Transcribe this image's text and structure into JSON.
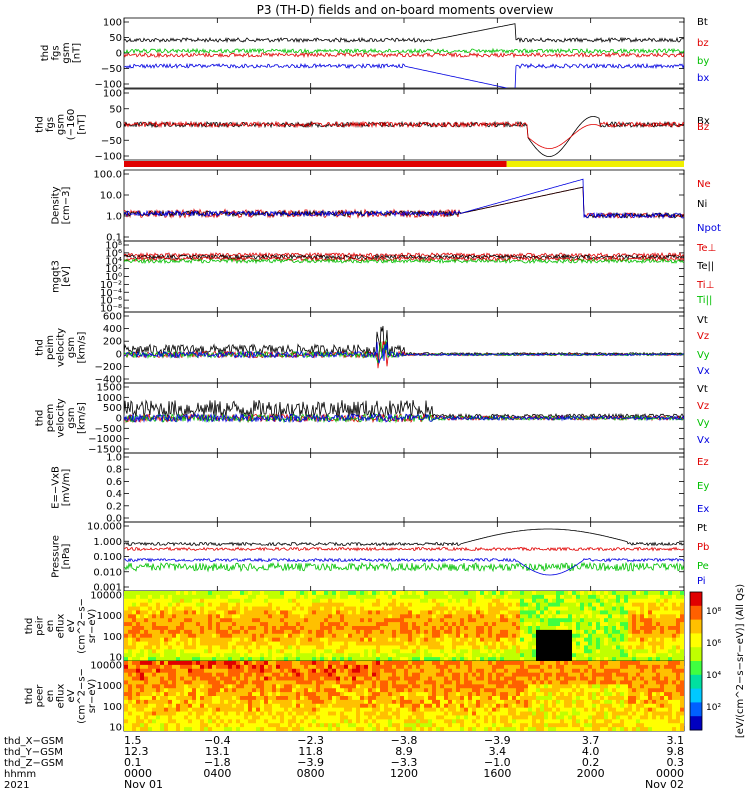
{
  "title": "P3 (TH-D) fields and on-board moments overview",
  "colors": {
    "black": "#000000",
    "red": "#e00000",
    "green": "#00c000",
    "blue": "#0000e0",
    "yellow": "#f0f000"
  },
  "chart_data": [
    {
      "id": "fgs",
      "type": "line",
      "ylabel": [
        "thd",
        "fgs",
        "gsm",
        "[nT]"
      ],
      "ylim": [
        -100,
        100
      ],
      "yticks": [
        "100",
        "50",
        "0",
        "−50",
        "−100"
      ],
      "series": [
        {
          "name": "Bt",
          "color": "black"
        },
        {
          "name": "bz",
          "color": "red"
        },
        {
          "name": "by",
          "color": "green"
        },
        {
          "name": "bx",
          "color": "blue"
        }
      ]
    },
    {
      "id": "fgs2",
      "type": "line",
      "ylabel": [
        "thd",
        "fgs",
        "gsm",
        "(−160",
        "[nT]"
      ],
      "ylim": [
        -125,
        100
      ],
      "yticks": [
        "100",
        "50",
        "0",
        "−50",
        "−100"
      ],
      "series": [
        {
          "name": "Bx",
          "color": "black"
        },
        {
          "name": "Bz",
          "color": "red"
        }
      ]
    },
    {
      "id": "mode",
      "type": "bar",
      "segments": [
        {
          "from": 0.0,
          "to": 16.4,
          "color": "red"
        },
        {
          "from": 16.4,
          "to": 24.0,
          "color": "yellow"
        }
      ]
    },
    {
      "id": "dens",
      "type": "line",
      "scale": "log",
      "ylabel": [
        "Density",
        "[cm−3]"
      ],
      "ylim": [
        0.1,
        100
      ],
      "yticks": [
        "100.0",
        "10.0",
        "1.0",
        "0.1"
      ],
      "series": [
        {
          "name": "Ne",
          "color": "red"
        },
        {
          "name": "Ni",
          "color": "black"
        },
        {
          "name": "Npot",
          "color": "blue"
        }
      ]
    },
    {
      "id": "temp",
      "type": "line",
      "scale": "log",
      "ylabel": [
        "mgqt3",
        "[eV]"
      ],
      "yticks": [
        "10⁸",
        "10⁶",
        "10⁴",
        "10²",
        "10⁰",
        "10⁻²",
        "10⁻⁴",
        "10⁻⁶",
        "10⁻⁸"
      ],
      "series": [
        {
          "name": "Te⊥",
          "color": "red"
        },
        {
          "name": "Te||",
          "color": "black"
        },
        {
          "name": "Ti⊥",
          "color": "red"
        },
        {
          "name": "Ti||",
          "color": "green"
        }
      ]
    },
    {
      "id": "peim",
      "type": "line",
      "ylabel": [
        "thd",
        "peim",
        "velocity",
        "gsm",
        "[km/s]"
      ],
      "ylim": [
        -400,
        600
      ],
      "yticks": [
        "600",
        "400",
        "200",
        "0",
        "−200",
        "−400"
      ],
      "series": [
        {
          "name": "Vt",
          "color": "black"
        },
        {
          "name": "Vz",
          "color": "red"
        },
        {
          "name": "Vy",
          "color": "green"
        },
        {
          "name": "Vx",
          "color": "blue"
        }
      ]
    },
    {
      "id": "peem",
      "type": "line",
      "ylabel": [
        "thd",
        "peem",
        "velocity",
        "gsm",
        "[km/s]"
      ],
      "ylim": [
        -1500,
        1500
      ],
      "yticks": [
        "1500",
        "1000",
        "500",
        "0",
        "−500",
        "−1000",
        "−1500"
      ],
      "series": [
        {
          "name": "Vt",
          "color": "black"
        },
        {
          "name": "Vz",
          "color": "red"
        },
        {
          "name": "Vy",
          "color": "green"
        },
        {
          "name": "Vx",
          "color": "blue"
        }
      ]
    },
    {
      "id": "efield",
      "type": "line",
      "ylabel": [
        "E=−VxB",
        "[mV/m]"
      ],
      "ylim": [
        0,
        1
      ],
      "yticks": [
        "1.0",
        "0.8",
        "0.6",
        "0.4",
        "0.2",
        "0.0"
      ],
      "series": [
        {
          "name": "Ez",
          "color": "red"
        },
        {
          "name": "Ey",
          "color": "green"
        },
        {
          "name": "Ex",
          "color": "blue"
        }
      ]
    },
    {
      "id": "pres",
      "type": "line",
      "scale": "log",
      "ylabel": [
        "Pressure",
        "[nPa]"
      ],
      "ylim": [
        0.001,
        10
      ],
      "yticks": [
        "10.000",
        "1.000",
        "0.100",
        "0.010",
        "0.001"
      ],
      "series": [
        {
          "name": "Pt",
          "color": "black"
        },
        {
          "name": "Pb",
          "color": "red"
        },
        {
          "name": "Pe",
          "color": "green"
        },
        {
          "name": "Pi",
          "color": "blue"
        }
      ]
    },
    {
      "id": "peir",
      "type": "heatmap",
      "ylabel": [
        "thd",
        "peir",
        "en",
        "eflux",
        "eV",
        "(cm^2−s−",
        "sr−eV)"
      ],
      "yticks": [
        "10000",
        "1000",
        "100",
        "10"
      ]
    },
    {
      "id": "peer",
      "type": "heatmap",
      "ylabel": [
        "thd",
        "peer",
        "en",
        "eflux",
        "eV",
        "(cm^2−s−",
        "sr−eV)"
      ],
      "yticks": [
        "10000",
        "1000",
        "100",
        "10"
      ]
    }
  ],
  "colorbar": {
    "label": "[eV/(cm^2−s−sr−eV)] (All Qs)",
    "ticks": [
      "10⁸",
      "10⁶",
      "10⁴",
      "10²"
    ]
  },
  "xaxis": {
    "rows": [
      {
        "label": "thd_X−GSM",
        "values": [
          "1.5",
          "−0.4",
          "−2.3",
          "−3.8",
          "−3.9",
          "3.7",
          "3.1"
        ]
      },
      {
        "label": "thd_Y−GSM",
        "values": [
          "12.3",
          "13.1",
          "11.8",
          "8.9",
          "3.4",
          "4.0",
          "9.8"
        ]
      },
      {
        "label": "thd_Z−GSM",
        "values": [
          "0.1",
          "−1.8",
          "−3.9",
          "−3.3",
          "−1.0",
          "0.2",
          "0.3"
        ]
      },
      {
        "label": "hhmm",
        "values": [
          "0000",
          "0400",
          "0800",
          "1200",
          "1600",
          "2000",
          "0000"
        ]
      }
    ],
    "year": "2021",
    "dates": [
      {
        "text": "Nov 01"
      },
      {
        "text": "Nov 02"
      }
    ]
  }
}
